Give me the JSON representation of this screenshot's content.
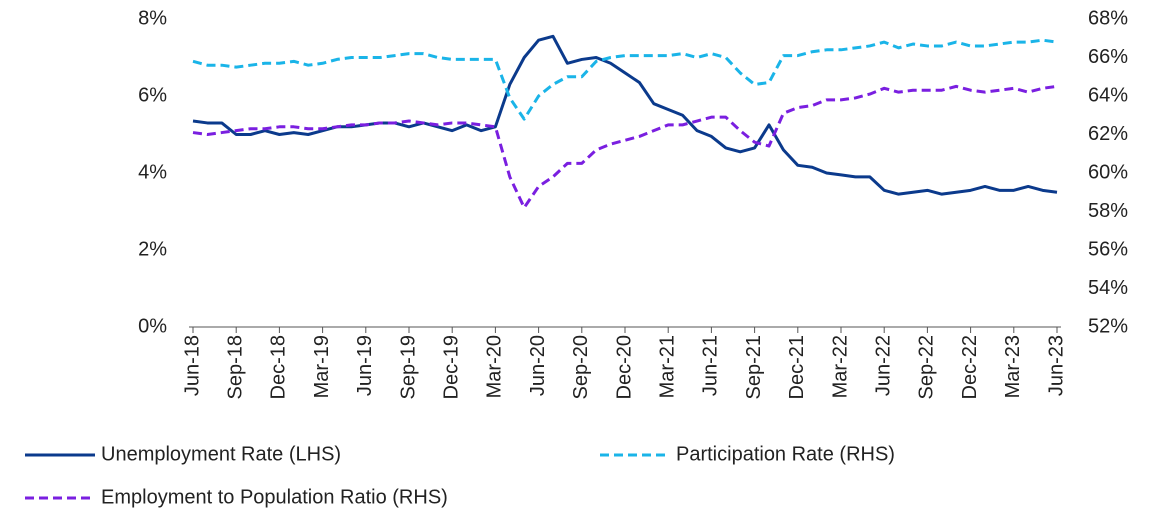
{
  "chart_data": {
    "type": "line",
    "categories": [
      "Jun-18",
      null,
      null,
      "Sep-18",
      null,
      null,
      "Dec-18",
      null,
      null,
      "Mar-19",
      null,
      null,
      "Jun-19",
      null,
      null,
      "Sep-19",
      null,
      null,
      "Dec-19",
      null,
      null,
      "Mar-20",
      null,
      null,
      "Jun-20",
      null,
      null,
      "Sep-20",
      null,
      null,
      "Dec-20",
      null,
      null,
      "Mar-21",
      null,
      null,
      "Jun-21",
      null,
      null,
      "Sep-21",
      null,
      null,
      "Dec-21",
      null,
      null,
      "Mar-22",
      null,
      null,
      "Jun-22",
      null,
      null,
      "Sep-22",
      null,
      null,
      "Dec-22",
      null,
      null,
      "Mar-23",
      null,
      null,
      "Jun-23"
    ],
    "series": [
      {
        "name": "Unemployment Rate (LHS)",
        "color": "#0b3a8c",
        "style": "solid",
        "axis": "y",
        "values": [
          5.35,
          5.3,
          5.3,
          5.0,
          5.0,
          5.1,
          5.0,
          5.05,
          5.0,
          5.1,
          5.2,
          5.2,
          5.25,
          5.3,
          5.3,
          5.2,
          5.3,
          5.2,
          5.1,
          5.25,
          5.1,
          5.2,
          6.3,
          7.0,
          7.45,
          7.55,
          6.85,
          6.95,
          7.0,
          6.85,
          6.6,
          6.35,
          5.8,
          5.65,
          5.5,
          5.1,
          4.95,
          4.65,
          4.55,
          4.65,
          5.25,
          4.6,
          4.2,
          4.15,
          4.0,
          3.95,
          3.9,
          3.9,
          3.55,
          3.45,
          3.5,
          3.55,
          3.45,
          3.5,
          3.55,
          3.65,
          3.55,
          3.55,
          3.65,
          3.55,
          3.5
        ]
      },
      {
        "name": "Participation Rate (RHS)",
        "color": "#1ab4e8",
        "style": "dashed",
        "axis": "y2",
        "values": [
          65.8,
          65.6,
          65.6,
          65.5,
          65.6,
          65.7,
          65.7,
          65.8,
          65.6,
          65.7,
          65.9,
          66.0,
          66.0,
          66.0,
          66.1,
          66.2,
          66.2,
          66.0,
          65.9,
          65.9,
          65.9,
          65.9,
          63.9,
          62.8,
          64.0,
          64.6,
          65.0,
          65.0,
          65.8,
          66.0,
          66.1,
          66.1,
          66.1,
          66.1,
          66.2,
          66.0,
          66.2,
          66.0,
          65.2,
          64.6,
          64.7,
          66.1,
          66.1,
          66.3,
          66.4,
          66.4,
          66.5,
          66.6,
          66.8,
          66.5,
          66.7,
          66.6,
          66.6,
          66.8,
          66.6,
          66.6,
          66.7,
          66.8,
          66.8,
          66.9,
          66.8
        ]
      },
      {
        "name": "Employment to Population Ratio (RHS)",
        "color": "#7a1fe0",
        "style": "dashed",
        "axis": "y2",
        "values": [
          62.1,
          62.0,
          62.1,
          62.2,
          62.3,
          62.3,
          62.4,
          62.4,
          62.3,
          62.3,
          62.4,
          62.5,
          62.5,
          62.6,
          62.6,
          62.7,
          62.6,
          62.5,
          62.6,
          62.6,
          62.5,
          62.4,
          59.8,
          58.2,
          59.3,
          59.8,
          60.5,
          60.5,
          61.2,
          61.5,
          61.7,
          61.9,
          62.2,
          62.5,
          62.5,
          62.7,
          62.9,
          62.9,
          62.2,
          61.6,
          61.4,
          63.1,
          63.4,
          63.5,
          63.8,
          63.8,
          63.9,
          64.1,
          64.4,
          64.2,
          64.3,
          64.3,
          64.3,
          64.5,
          64.3,
          64.2,
          64.3,
          64.4,
          64.2,
          64.4,
          64.5
        ]
      }
    ],
    "ylim": [
      0,
      8
    ],
    "yticks": [
      {
        "value": 0,
        "label": "0%"
      },
      {
        "value": 2,
        "label": "2%"
      },
      {
        "value": 4,
        "label": "4%"
      },
      {
        "value": 6,
        "label": "6%"
      },
      {
        "value": 8,
        "label": "8%"
      }
    ],
    "y2lim": [
      52,
      68
    ],
    "y2ticks": [
      {
        "value": 52,
        "label": "52%"
      },
      {
        "value": 54,
        "label": "54%"
      },
      {
        "value": 56,
        "label": "56%"
      },
      {
        "value": 58,
        "label": "58%"
      },
      {
        "value": 60,
        "label": "60%"
      },
      {
        "value": 62,
        "label": "62%"
      },
      {
        "value": 64,
        "label": "64%"
      },
      {
        "value": 66,
        "label": "66%"
      },
      {
        "value": 68,
        "label": "68%"
      }
    ],
    "grid": false,
    "legend": "bottom"
  }
}
